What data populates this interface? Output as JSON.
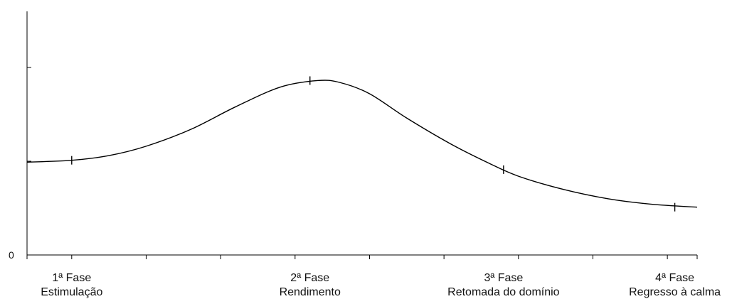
{
  "chart_data": {
    "type": "line",
    "title": "",
    "xlabel": "",
    "ylabel": "",
    "y_tick_label": "0",
    "ylim": [
      0,
      100
    ],
    "xlim": [
      -0.3,
      4.2
    ],
    "grid": false,
    "legend": "none",
    "curve_points": [
      {
        "x": -0.3,
        "y": 49.5
      },
      {
        "x": 0.0,
        "y": 50.5
      },
      {
        "x": 0.25,
        "y": 53
      },
      {
        "x": 0.5,
        "y": 58
      },
      {
        "x": 0.8,
        "y": 67
      },
      {
        "x": 1.1,
        "y": 79
      },
      {
        "x": 1.4,
        "y": 89.5
      },
      {
        "x": 1.65,
        "y": 93
      },
      {
        "x": 1.8,
        "y": 92
      },
      {
        "x": 2.0,
        "y": 86
      },
      {
        "x": 2.25,
        "y": 73
      },
      {
        "x": 2.55,
        "y": 59
      },
      {
        "x": 2.8,
        "y": 49
      },
      {
        "x": 3.0,
        "y": 42
      },
      {
        "x": 3.3,
        "y": 35
      },
      {
        "x": 3.6,
        "y": 30
      },
      {
        "x": 3.9,
        "y": 27
      },
      {
        "x": 4.2,
        "y": 25.5
      }
    ],
    "phases": [
      {
        "x": 0.0,
        "y": 50.5,
        "label_num": "1ª Fase",
        "label_name": "Estimulação"
      },
      {
        "x": 1.6,
        "y": 93,
        "label_num": "2ª Fase",
        "label_name": "Rendimento"
      },
      {
        "x": 2.9,
        "y": 45.5,
        "label_num": "3ª Fase",
        "label_name": "Retomada do domínio"
      },
      {
        "x": 4.05,
        "y": 25.5,
        "label_num": "4ª Fase",
        "label_name": "Regresso à calma"
      }
    ],
    "x_ticks": [
      -0.3,
      0.0,
      0.5,
      1.0,
      1.5,
      2.0,
      2.5,
      3.0,
      3.5,
      4.0,
      4.2
    ],
    "y_ticks": [
      0,
      50,
      100,
      150
    ]
  }
}
